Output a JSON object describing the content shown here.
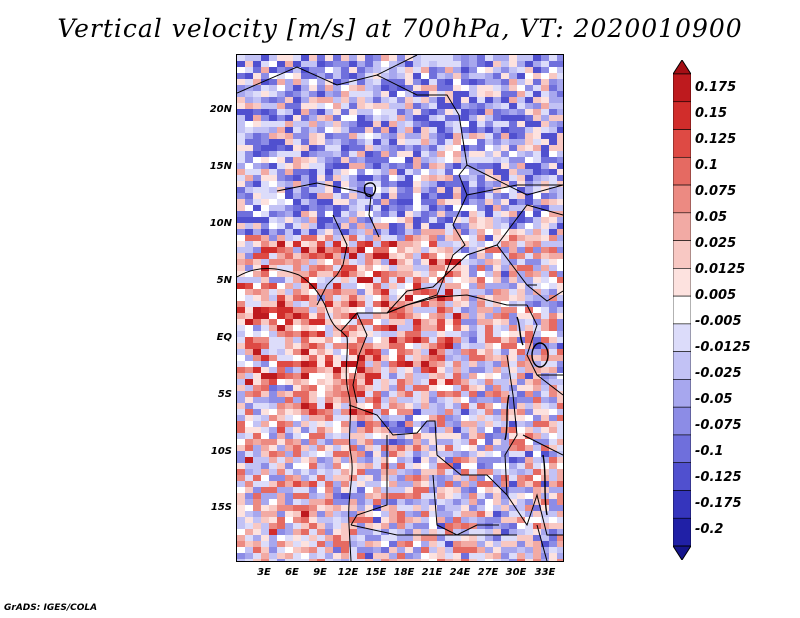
{
  "title": "Vertical velocity [m/s] at 700hPa, VT: 2020010900",
  "map": {
    "region": "Central Africa",
    "lat_labels": [
      "20N",
      "15N",
      "10N",
      "5N",
      "EQ",
      "5S",
      "10S",
      "15S"
    ],
    "lon_labels": [
      "3E",
      "6E",
      "9E",
      "12E",
      "15E",
      "18E",
      "21E",
      "24E",
      "27E",
      "30E",
      "33E"
    ]
  },
  "colorbar": {
    "labels": [
      "0.175",
      "0.15",
      "0.125",
      "0.1",
      "0.075",
      "0.05",
      "0.025",
      "0.0125",
      "0.005",
      "-0.005",
      "-0.0125",
      "-0.025",
      "-0.05",
      "-0.075",
      "-0.1",
      "-0.125",
      "-0.175",
      "-0.2"
    ],
    "colors": [
      "#a50f15",
      "#be1a1e",
      "#d12d2b",
      "#de4a44",
      "#e56a62",
      "#ec8a82",
      "#f2aaa4",
      "#f8c8c3",
      "#fde2df",
      "#ffffff",
      "#dcdcfa",
      "#c2c2f5",
      "#a7a7ee",
      "#8c8ce6",
      "#6f6fdc",
      "#5050cf",
      "#3535bd",
      "#2020a6",
      "#15158c"
    ]
  },
  "credit": "GrADS: IGES/COLA"
}
